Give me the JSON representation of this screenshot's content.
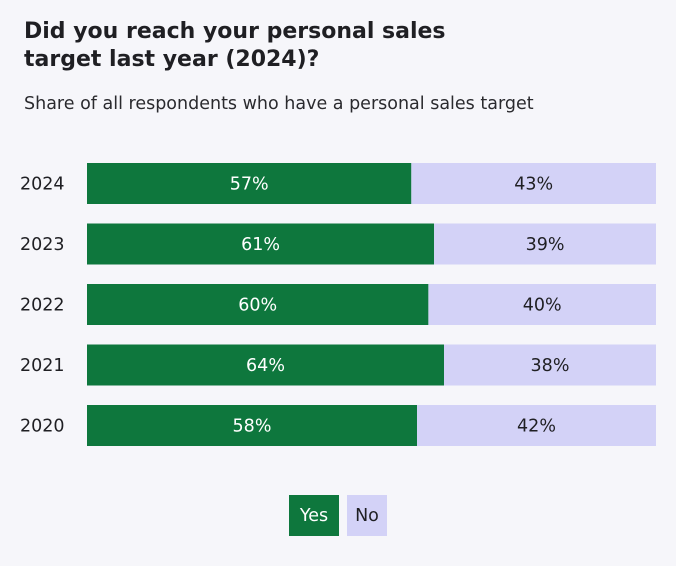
{
  "title": "Did you reach your personal sales target last year (2024)?",
  "subtitle": "Share of all respondents who have a personal sales target",
  "chart_data": {
    "type": "bar",
    "orientation": "horizontal",
    "stacked": true,
    "categories": [
      "2024",
      "2023",
      "2022",
      "2021",
      "2020"
    ],
    "series": [
      {
        "name": "Yes",
        "values": [
          57,
          61,
          60,
          64,
          58
        ],
        "color": "#0e773d"
      },
      {
        "name": "No",
        "values": [
          43,
          39,
          40,
          38,
          42
        ],
        "color": "#d3d2f7"
      }
    ],
    "data_labels": [
      [
        "57%",
        "61%",
        "60%",
        "64%",
        "58%"
      ],
      [
        "43%",
        "39%",
        "40%",
        "38%",
        "42%"
      ]
    ],
    "title": "Did you reach your personal sales target last year (2024)?",
    "subtitle": "Share of all respondents who have a personal sales target",
    "xlabel": "",
    "ylabel": "",
    "grid": false,
    "legend": "bottom-center"
  },
  "legend": {
    "yes_label": "Yes",
    "no_label": "No"
  },
  "colors": {
    "yes": "#0e773d",
    "no": "#d3d2f7",
    "background": "#f6f6fa"
  }
}
